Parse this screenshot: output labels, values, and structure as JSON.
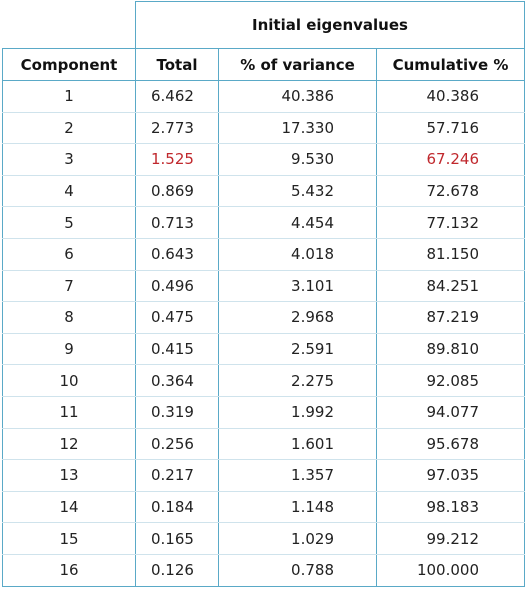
{
  "header": {
    "group": "Initial eigenvalues",
    "columns": [
      "Component",
      "Total",
      "% of variance",
      "Cumulative %"
    ]
  },
  "table": {
    "rows": [
      [
        "1",
        "6.462",
        "40.386",
        "40.386"
      ],
      [
        "2",
        "2.773",
        "17.330",
        "57.716"
      ],
      [
        "3",
        "1.525",
        "9.530",
        "67.246"
      ],
      [
        "4",
        "0.869",
        "5.432",
        "72.678"
      ],
      [
        "5",
        "0.713",
        "4.454",
        "77.132"
      ],
      [
        "6",
        "0.643",
        "4.018",
        "81.150"
      ],
      [
        "7",
        "0.496",
        "3.101",
        "84.251"
      ],
      [
        "8",
        "0.475",
        "2.968",
        "87.219"
      ],
      [
        "9",
        "0.415",
        "2.591",
        "89.810"
      ],
      [
        "10",
        "0.364",
        "2.275",
        "92.085"
      ],
      [
        "11",
        "0.319",
        "1.992",
        "94.077"
      ],
      [
        "12",
        "0.256",
        "1.601",
        "95.678"
      ],
      [
        "13",
        "0.217",
        "1.357",
        "97.035"
      ],
      [
        "14",
        "0.184",
        "1.148",
        "98.183"
      ],
      [
        "15",
        "0.165",
        "1.029",
        "99.212"
      ],
      [
        "16",
        "0.126",
        "0.788",
        "100.000"
      ]
    ]
  }
}
